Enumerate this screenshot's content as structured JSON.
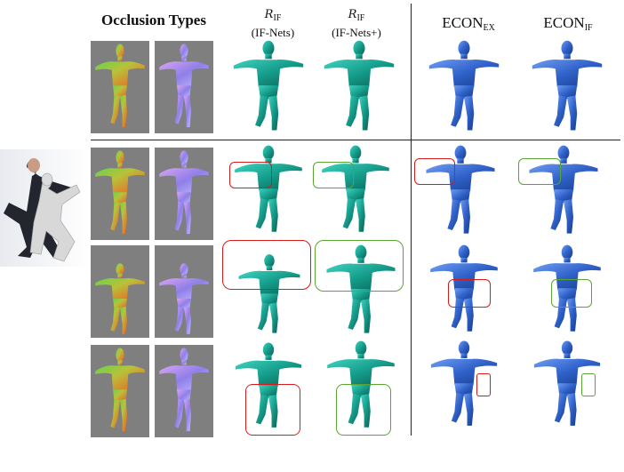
{
  "headers": {
    "occlusion_types": "Occlusion Types",
    "rif_symbol": "R",
    "rif_sub": "IF",
    "ifnets_label": "(IF-Nets)",
    "ifnetsplus_label": "(IF-Nets+)",
    "econ_ex_main": "ECON",
    "econ_ex_sub": "EX",
    "econ_if_main": "ECON",
    "econ_if_sub": "IF"
  },
  "caption_fragment": "",
  "colors": {
    "teal_mesh": "#18a08f",
    "blue_mesh": "#2f61c9",
    "red_box": "#d71a1a",
    "green_box": "#5aa432",
    "gray_bg": "#7f7f7f"
  }
}
